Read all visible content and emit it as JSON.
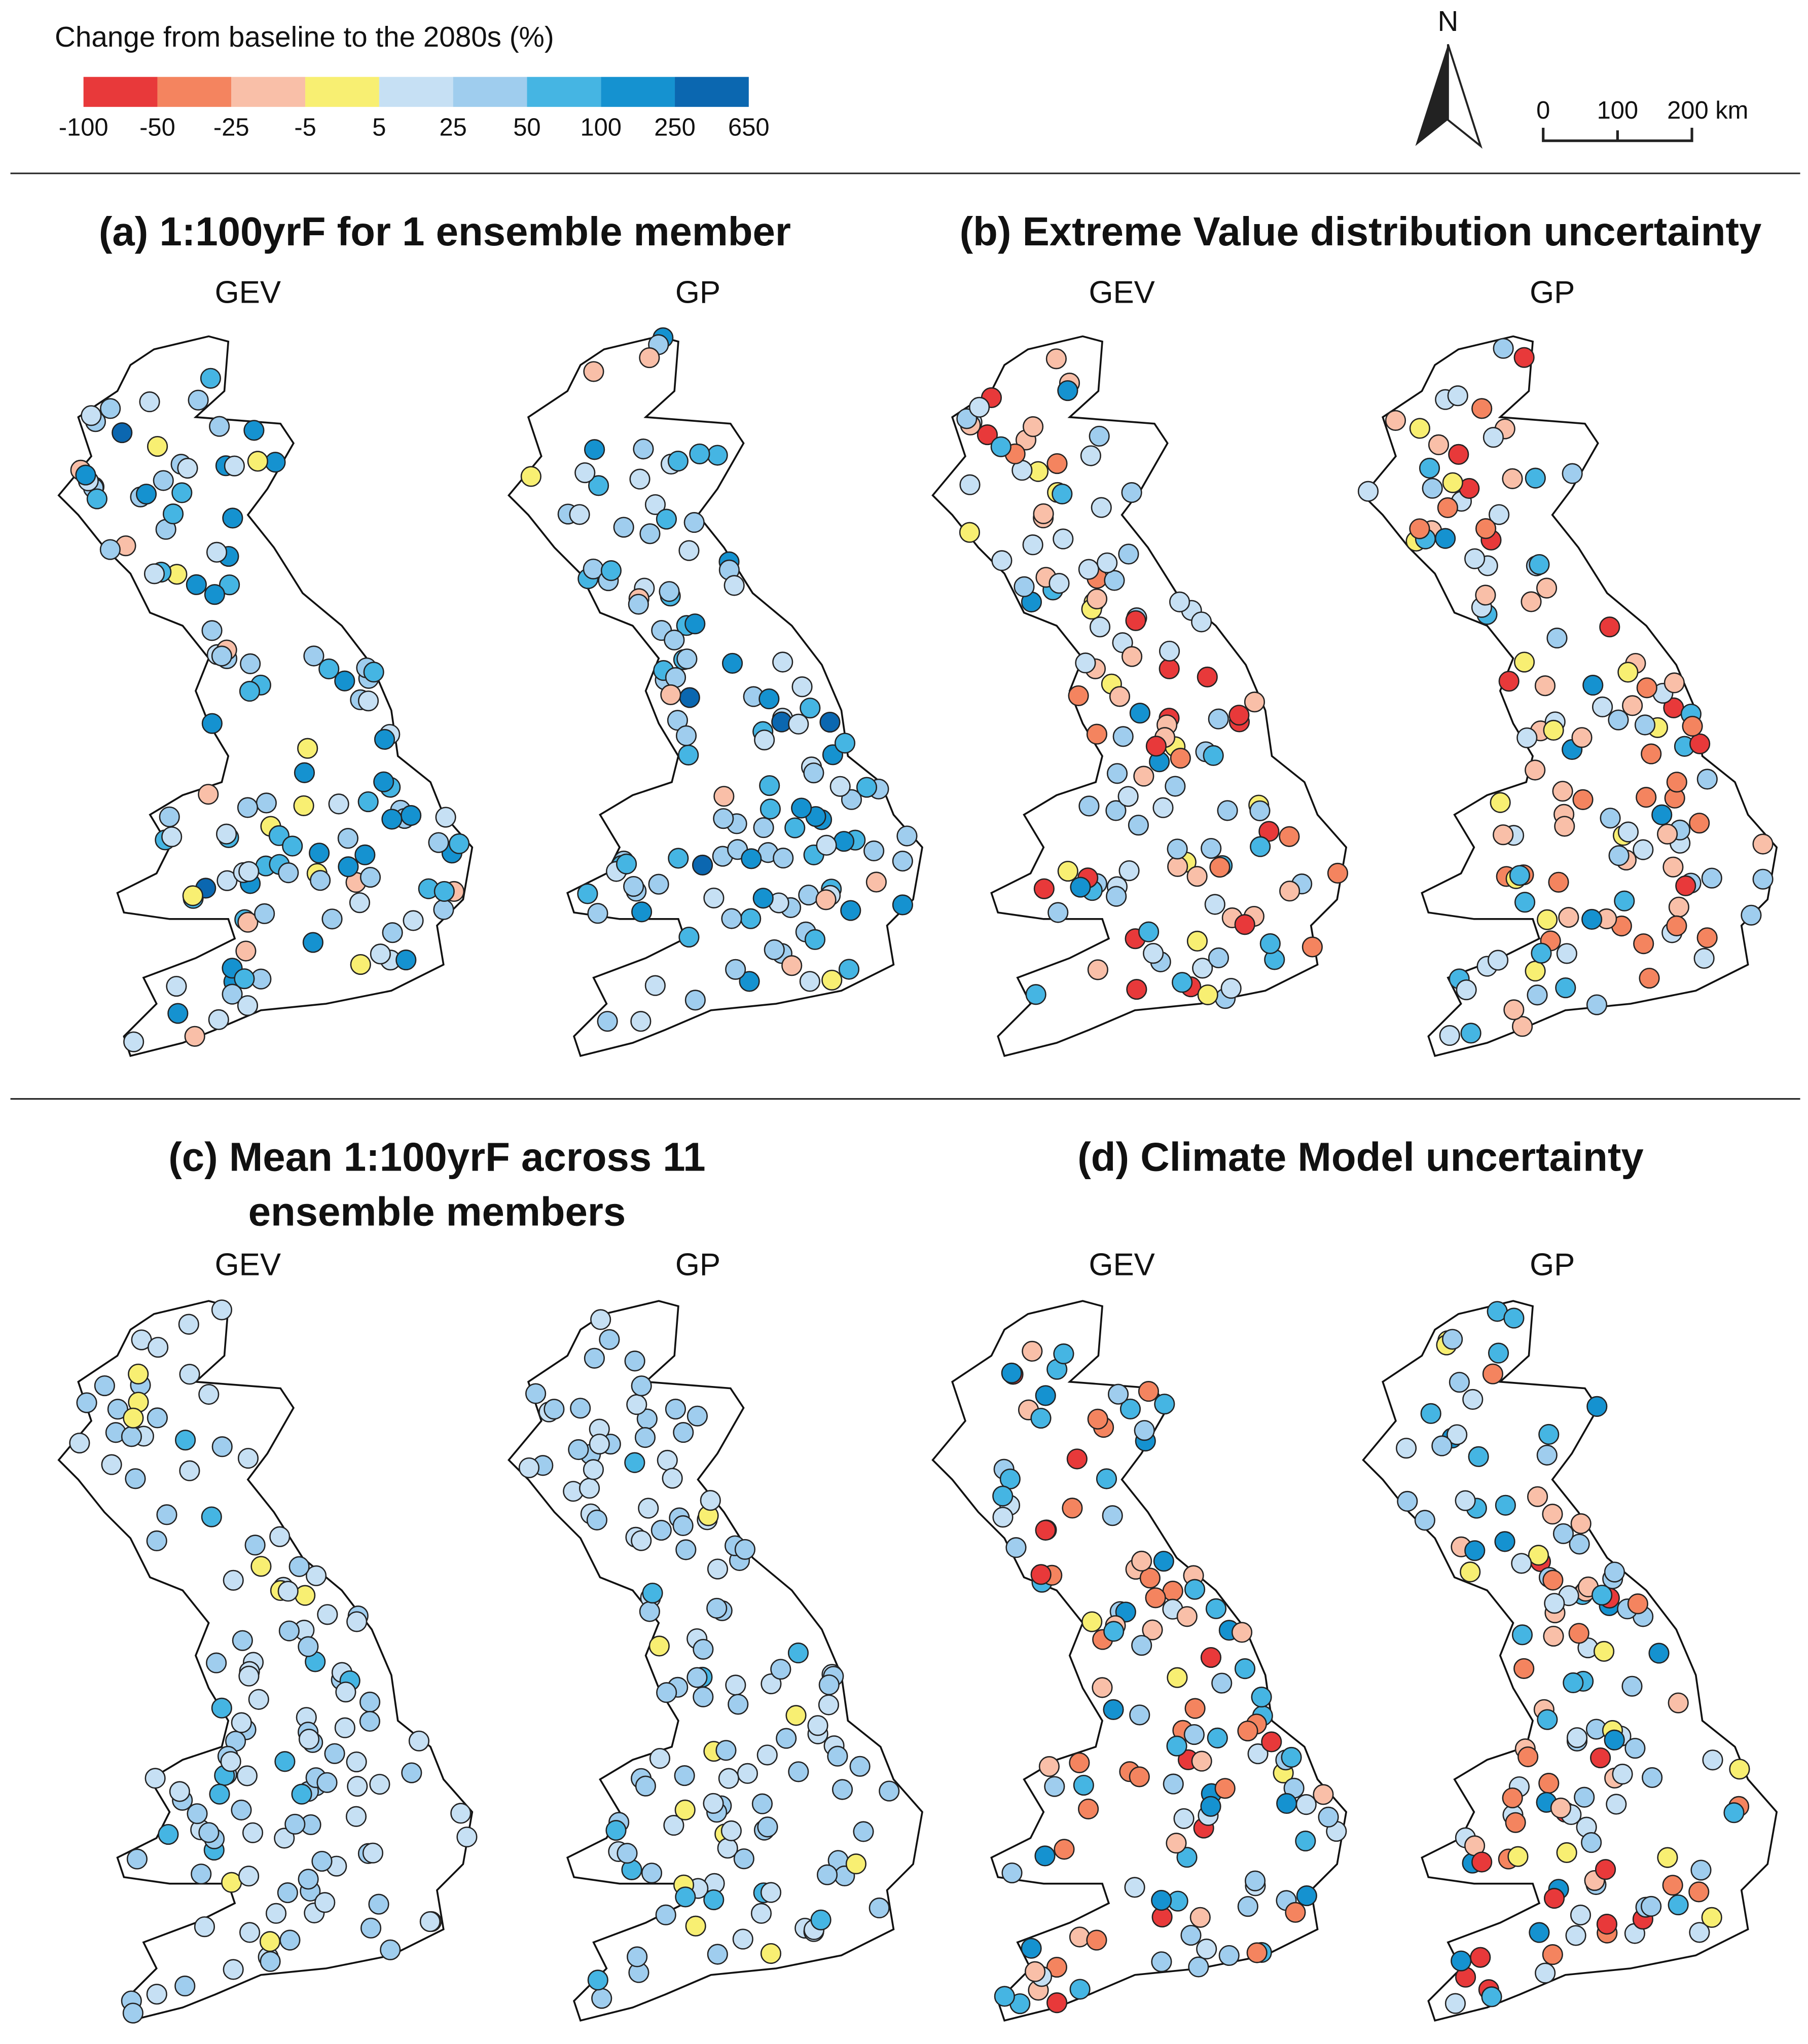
{
  "legend": {
    "title": "Change from baseline to the 2080s (%)",
    "colors": [
      "#e8393a",
      "#f4845f",
      "#f9bfa8",
      "#f8ef72",
      "#c6e0f4",
      "#9fcdee",
      "#45b5e3",
      "#1592d0",
      "#0b67b0"
    ],
    "labels": [
      "-100",
      "-50",
      "-25",
      "-5",
      "5",
      "25",
      "50",
      "100",
      "250",
      "650"
    ]
  },
  "north_arrow": "N",
  "scale_bar": [
    "0",
    "100",
    "200 km"
  ],
  "panels": [
    {
      "title": [
        "(a) 1:100yrF for 1 ensemble member"
      ],
      "maps": [
        "GEV",
        "GP"
      ]
    },
    {
      "title": [
        "(b) Extreme Value distribution uncertainty"
      ],
      "maps": [
        "GEV",
        "GP"
      ]
    },
    {
      "title": [
        "(c) Mean 1:100yrF across 11",
        "ensemble members"
      ],
      "maps": [
        "GEV",
        "GP"
      ]
    },
    {
      "title": [
        "(d) Climate Model uncertainty"
      ],
      "maps": [
        "GEV",
        "GP"
      ]
    }
  ]
}
